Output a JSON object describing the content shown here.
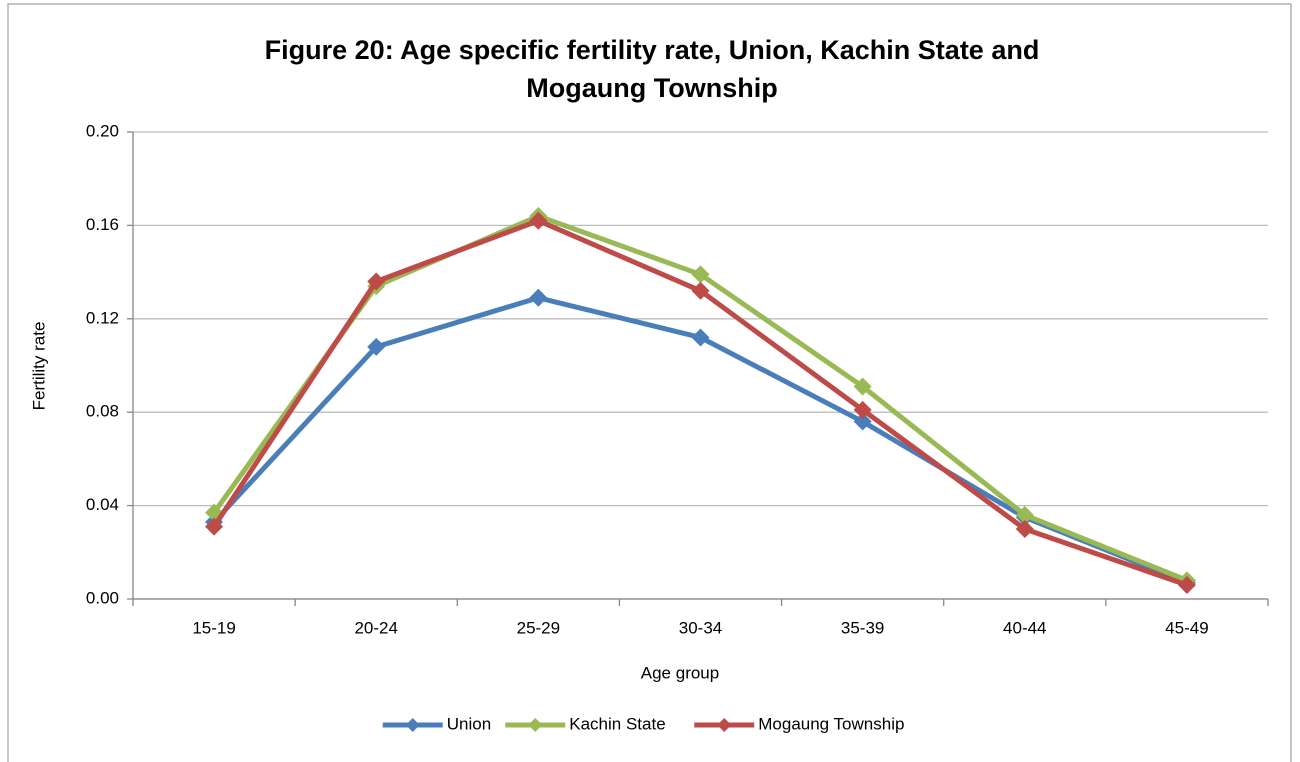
{
  "chart_data": {
    "type": "line",
    "title": [
      "Figure 20: Age specific fertility rate, Union, Kachin State and",
      "Mogaung Township"
    ],
    "x_label": "Age group",
    "y_label": "Fertility rate",
    "categories": [
      "15-19",
      "20-24",
      "25-29",
      "30-34",
      "35-39",
      "40-44",
      "45-49"
    ],
    "series": [
      {
        "name": "Union",
        "color": "#4a7ebb",
        "values": [
          0.033,
          0.108,
          0.129,
          0.112,
          0.076,
          0.035,
          0.007
        ]
      },
      {
        "name": "Kachin State",
        "color": "#98b954",
        "values": [
          0.037,
          0.134,
          0.164,
          0.139,
          0.091,
          0.036,
          0.008
        ]
      },
      {
        "name": "Mogaung Township",
        "color": "#be4b48",
        "values": [
          0.031,
          0.136,
          0.162,
          0.132,
          0.081,
          0.03,
          0.006
        ]
      }
    ],
    "ylim": [
      0,
      0.2
    ],
    "yticks": [
      {
        "value": 0,
        "label": "0.00"
      },
      {
        "value": 0.04,
        "label": "0.04"
      },
      {
        "value": 0.08,
        "label": "0.08"
      },
      {
        "value": 0.12,
        "label": "0.12"
      },
      {
        "value": 0.16,
        "label": "0.16"
      },
      {
        "value": 0.2,
        "label": "0.20"
      }
    ],
    "grid": true,
    "legend": "bottom"
  }
}
